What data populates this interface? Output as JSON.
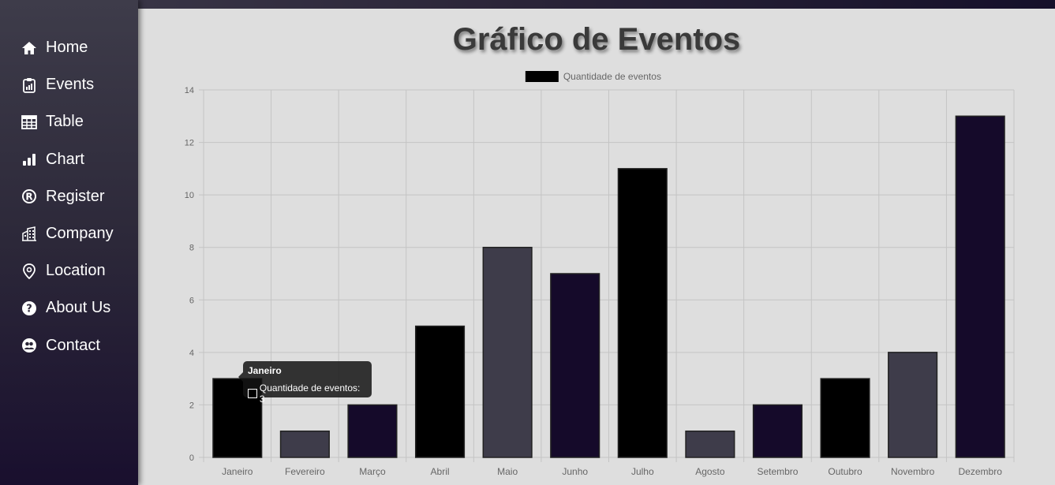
{
  "nav": {
    "items": [
      {
        "label": "Home",
        "icon": "home-icon"
      },
      {
        "label": "Events",
        "icon": "clipboard-icon"
      },
      {
        "label": "Table",
        "icon": "table-icon"
      },
      {
        "label": "Chart",
        "icon": "bar-chart-icon"
      },
      {
        "label": "Register",
        "icon": "registered-icon"
      },
      {
        "label": "Company",
        "icon": "building-icon"
      },
      {
        "label": "Location",
        "icon": "location-pin-icon"
      },
      {
        "label": "About Us",
        "icon": "question-circle-icon"
      },
      {
        "label": "Contact",
        "icon": "contact-icon"
      }
    ]
  },
  "page": {
    "title": "Gráfico de Eventos"
  },
  "colors": {
    "dark": "#000000",
    "gray": "#3e3c4a",
    "purple": "#150a2a"
  },
  "chart_data": {
    "type": "bar",
    "title": "",
    "xlabel": "",
    "ylabel": "",
    "categories": [
      "Janeiro",
      "Fevereiro",
      "Março",
      "Abril",
      "Maio",
      "Junho",
      "Julho",
      "Agosto",
      "Setembro",
      "Outubro",
      "Novembro",
      "Dezembro"
    ],
    "series": [
      {
        "name": "Quantidade de eventos",
        "values": [
          3,
          1,
          2,
          5,
          8,
          7,
          11,
          1,
          2,
          3,
          4,
          13
        ]
      }
    ],
    "bar_colors": [
      "#000000",
      "#3e3c4a",
      "#150a2a",
      "#000000",
      "#3e3c4a",
      "#150a2a",
      "#000000",
      "#3e3c4a",
      "#150a2a",
      "#000000",
      "#3e3c4a",
      "#150a2a"
    ],
    "ylim": [
      0,
      14
    ],
    "yticks": [
      0,
      2,
      4,
      6,
      8,
      10,
      12,
      14
    ],
    "grid": true,
    "legend": "top-center",
    "tooltip": {
      "title": "Janeiro",
      "label": "Quantidade de eventos: 3"
    }
  }
}
